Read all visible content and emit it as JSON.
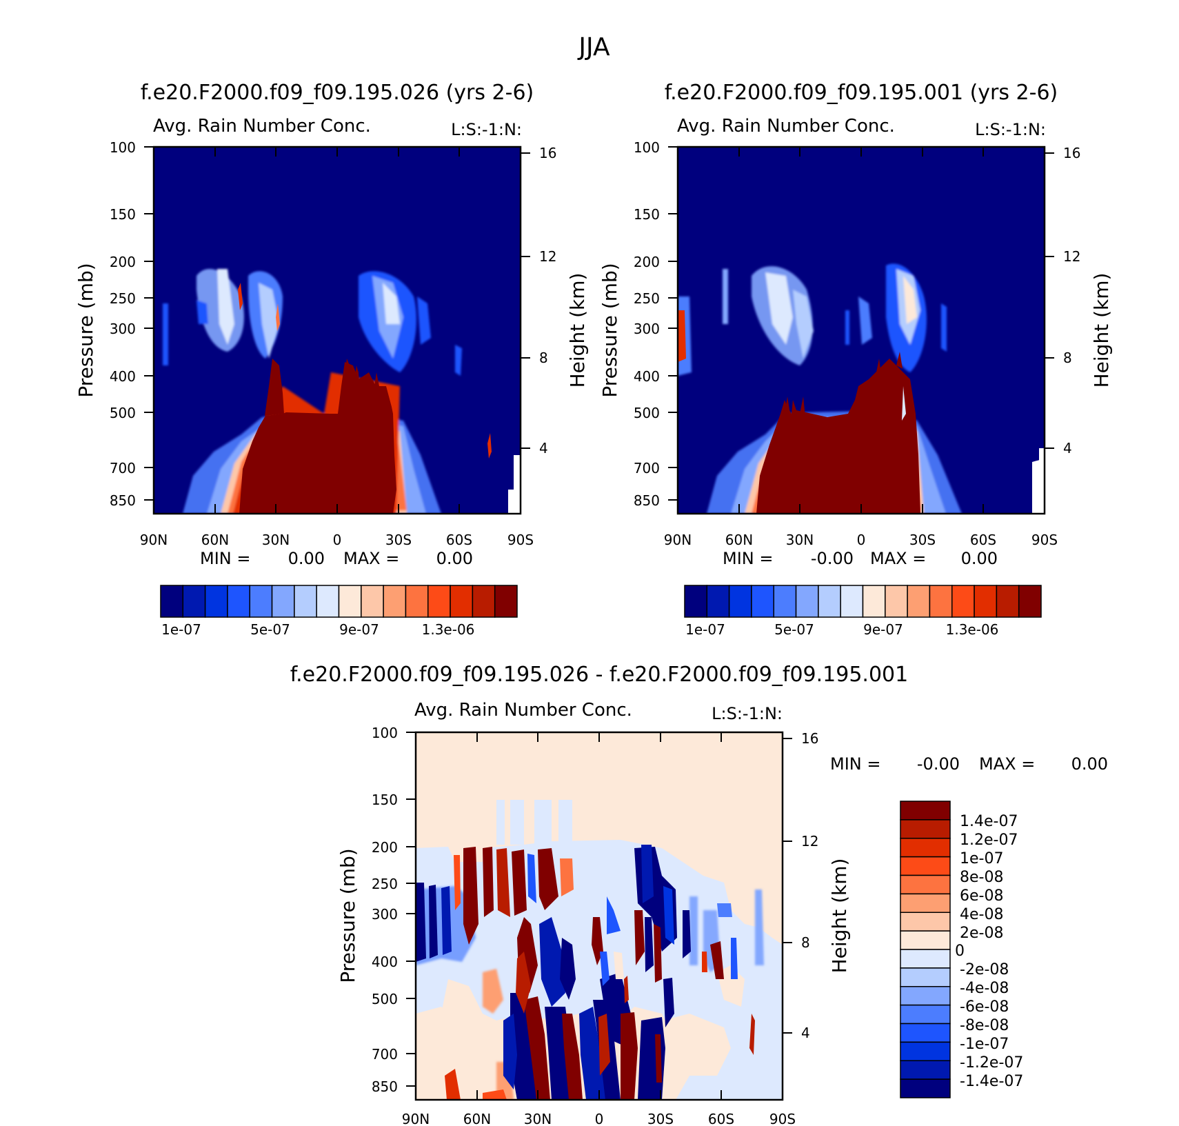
{
  "suptitle": "JJA",
  "colors": {
    "abs": [
      "#00007e",
      "#0019b0",
      "#0034e0",
      "#1e55fe",
      "#4c7dfe",
      "#83a7fe",
      "#b4cdfe",
      "#dde9fe",
      "#fde9d9",
      "#fdc7a9",
      "#fd9f72",
      "#fd7340",
      "#fd4b17",
      "#e22e00",
      "#b81c00",
      "#800000"
    ],
    "diff": [
      "#800000",
      "#b81c00",
      "#e22e00",
      "#fd4b17",
      "#fd7340",
      "#fd9f72",
      "#fdc7a9",
      "#fde9d9",
      "#dde9fe",
      "#b4cdfe",
      "#83a7fe",
      "#4c7dfe",
      "#1e55fe",
      "#0034e0",
      "#0019b0",
      "#00007e"
    ]
  },
  "chart_data": [
    {
      "type": "heatmap",
      "title": "f.e20.F2000.f09_f09.195.026 (yrs 2-6)",
      "subtitle": "Avg. Rain Number Conc.",
      "units_label": "L:S:-1:N:",
      "xlabel": "",
      "ylabel": "Pressure (mb)",
      "ylabel_right": "Height (km)",
      "x_ticks": [
        "90N",
        "60N",
        "30N",
        "0",
        "30S",
        "60S",
        "90S"
      ],
      "y_ticks": [
        "100",
        "150",
        "200",
        "250",
        "300",
        "400",
        "500",
        "700",
        "850"
      ],
      "y_ticks_right": [
        "16",
        "12",
        "8",
        "4"
      ],
      "ylim": [
        100,
        925
      ],
      "stats": {
        "min_label": "MIN =",
        "min_value": "0.00",
        "max_label": "MAX =",
        "max_value": "0.00"
      },
      "colorbar_labels": [
        "1e-07",
        "5e-07",
        "9e-07",
        "1.3e-06"
      ],
      "levels": [
        1e-07,
        2e-07,
        3e-07,
        4e-07,
        5e-07,
        6e-07,
        7e-07,
        8e-07,
        9e-07,
        1e-06,
        1.1e-06,
        1.2e-06,
        1.3e-06,
        1.4e-06,
        1.5e-06
      ]
    },
    {
      "type": "heatmap",
      "title": "f.e20.F2000.f09_f09.195.001 (yrs 2-6)",
      "subtitle": "Avg. Rain Number Conc.",
      "units_label": "L:S:-1:N:",
      "xlabel": "",
      "ylabel": "Pressure (mb)",
      "ylabel_right": "Height (km)",
      "x_ticks": [
        "90N",
        "60N",
        "30N",
        "0",
        "30S",
        "60S",
        "90S"
      ],
      "y_ticks": [
        "100",
        "150",
        "200",
        "250",
        "300",
        "400",
        "500",
        "700",
        "850"
      ],
      "y_ticks_right": [
        "16",
        "12",
        "8",
        "4"
      ],
      "ylim": [
        100,
        925
      ],
      "stats": {
        "min_label": "MIN =",
        "min_value": "-0.00",
        "max_label": "MAX =",
        "max_value": "0.00"
      },
      "colorbar_labels": [
        "1e-07",
        "5e-07",
        "9e-07",
        "1.3e-06"
      ],
      "levels": [
        1e-07,
        2e-07,
        3e-07,
        4e-07,
        5e-07,
        6e-07,
        7e-07,
        8e-07,
        9e-07,
        1e-06,
        1.1e-06,
        1.2e-06,
        1.3e-06,
        1.4e-06,
        1.5e-06
      ]
    },
    {
      "type": "heatmap",
      "title": "f.e20.F2000.f09_f09.195.026 - f.e20.F2000.f09_f09.195.001",
      "subtitle": "Avg. Rain Number Conc.",
      "units_label": "L:S:-1:N:",
      "xlabel": "",
      "ylabel": "Pressure (mb)",
      "ylabel_right": "Height (km)",
      "x_ticks": [
        "90N",
        "60N",
        "30N",
        "0",
        "30S",
        "60S",
        "90S"
      ],
      "y_ticks": [
        "100",
        "150",
        "200",
        "250",
        "300",
        "400",
        "500",
        "700",
        "850"
      ],
      "y_ticks_right": [
        "16",
        "12",
        "8",
        "4"
      ],
      "ylim": [
        100,
        925
      ],
      "stats": {
        "min_label": "MIN =",
        "min_value": "-0.00",
        "max_label": "MAX =",
        "max_value": "0.00"
      },
      "colorbar_labels": [
        "1.4e-07",
        "1.2e-07",
        "1e-07",
        "8e-08",
        "6e-08",
        "4e-08",
        "2e-08",
        "0",
        "-2e-08",
        "-4e-08",
        "-6e-08",
        "-8e-08",
        "-1e-07",
        "-1.2e-07",
        "-1.4e-07"
      ]
    }
  ]
}
